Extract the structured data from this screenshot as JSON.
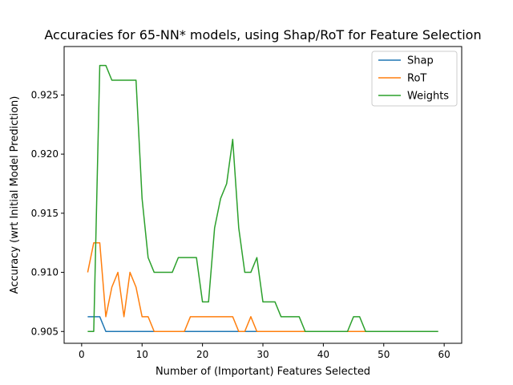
{
  "chart_data": {
    "type": "line",
    "title": "Accuracies for 65-NN* models, using Shap/RoT for Feature Selection",
    "xlabel": "Number of (Important) Features Selected",
    "ylabel": "Accuracy (wrt Initial Model Prediction)",
    "xlim": [
      -2.9,
      62.9
    ],
    "ylim": [
      0.904,
      0.9291
    ],
    "xticks": [
      0,
      10,
      20,
      30,
      40,
      50,
      60
    ],
    "yticks": [
      0.905,
      0.91,
      0.915,
      0.92,
      0.925
    ],
    "ytick_labels": [
      "0.905",
      "0.910",
      "0.915",
      "0.920",
      "0.925"
    ],
    "grid": false,
    "legend_position": "top-right",
    "x": [
      1,
      2,
      3,
      4,
      5,
      6,
      7,
      8,
      9,
      10,
      11,
      12,
      13,
      14,
      15,
      16,
      17,
      18,
      19,
      20,
      21,
      22,
      23,
      24,
      25,
      26,
      27,
      28,
      29,
      30,
      31,
      32,
      33,
      34,
      35,
      36,
      37,
      38,
      39,
      40,
      41,
      42,
      43,
      44,
      45,
      46,
      47,
      48,
      49,
      50,
      51,
      52,
      53,
      54,
      55,
      56,
      57,
      58,
      59
    ],
    "series": [
      {
        "name": "Shap",
        "color": "#1f77b4",
        "values": [
          0.90625,
          0.90625,
          0.90625,
          0.905,
          0.905,
          0.905,
          0.905,
          0.905,
          0.905,
          0.905,
          0.905,
          0.905,
          0.905,
          0.905,
          0.905,
          0.905,
          0.905,
          0.905,
          0.905,
          0.905,
          0.905,
          0.905,
          0.905,
          0.905,
          0.905,
          0.905,
          0.905,
          0.905,
          0.905,
          0.905,
          0.905,
          0.905,
          0.905,
          0.905,
          0.905,
          0.905,
          0.905,
          0.905,
          0.905,
          0.905,
          0.905,
          0.905,
          0.905,
          0.905,
          0.905,
          0.905,
          0.905,
          0.905,
          0.905,
          0.905,
          0.905,
          0.905,
          0.905,
          0.905,
          0.905,
          0.905,
          0.905,
          0.905,
          0.905
        ]
      },
      {
        "name": "RoT",
        "color": "#ff7f0e",
        "values": [
          0.91,
          0.9125,
          0.9125,
          0.90625,
          0.90875,
          0.91,
          0.90625,
          0.91,
          0.90875,
          0.90625,
          0.90625,
          0.905,
          0.905,
          0.905,
          0.905,
          0.905,
          0.905,
          0.90625,
          0.90625,
          0.90625,
          0.90625,
          0.90625,
          0.90625,
          0.90625,
          0.90625,
          0.905,
          0.905,
          0.90625,
          0.905,
          0.905,
          0.905,
          0.905,
          0.905,
          0.905,
          0.905,
          0.905,
          0.905,
          0.905,
          0.905,
          0.905,
          0.905,
          0.905,
          0.905,
          0.905,
          0.905,
          0.905,
          0.905,
          0.905,
          0.905,
          0.905,
          0.905,
          0.905,
          0.905,
          0.905,
          0.905,
          0.905,
          0.905,
          0.905,
          0.905
        ]
      },
      {
        "name": "Weights",
        "color": "#2ca02c",
        "values": [
          0.905,
          0.905,
          0.9275,
          0.9275,
          0.92625,
          0.92625,
          0.92625,
          0.92625,
          0.92625,
          0.91625,
          0.91125,
          0.91,
          0.91,
          0.91,
          0.91,
          0.91125,
          0.91125,
          0.91125,
          0.91125,
          0.9075,
          0.9075,
          0.91375,
          0.91625,
          0.9175,
          0.92125,
          0.91375,
          0.91,
          0.91,
          0.91125,
          0.9075,
          0.9075,
          0.9075,
          0.90625,
          0.90625,
          0.90625,
          0.90625,
          0.905,
          0.905,
          0.905,
          0.905,
          0.905,
          0.905,
          0.905,
          0.905,
          0.90625,
          0.90625,
          0.905,
          0.905,
          0.905,
          0.905,
          0.905,
          0.905,
          0.905,
          0.905,
          0.905,
          0.905,
          0.905,
          0.905,
          0.905
        ]
      }
    ]
  }
}
